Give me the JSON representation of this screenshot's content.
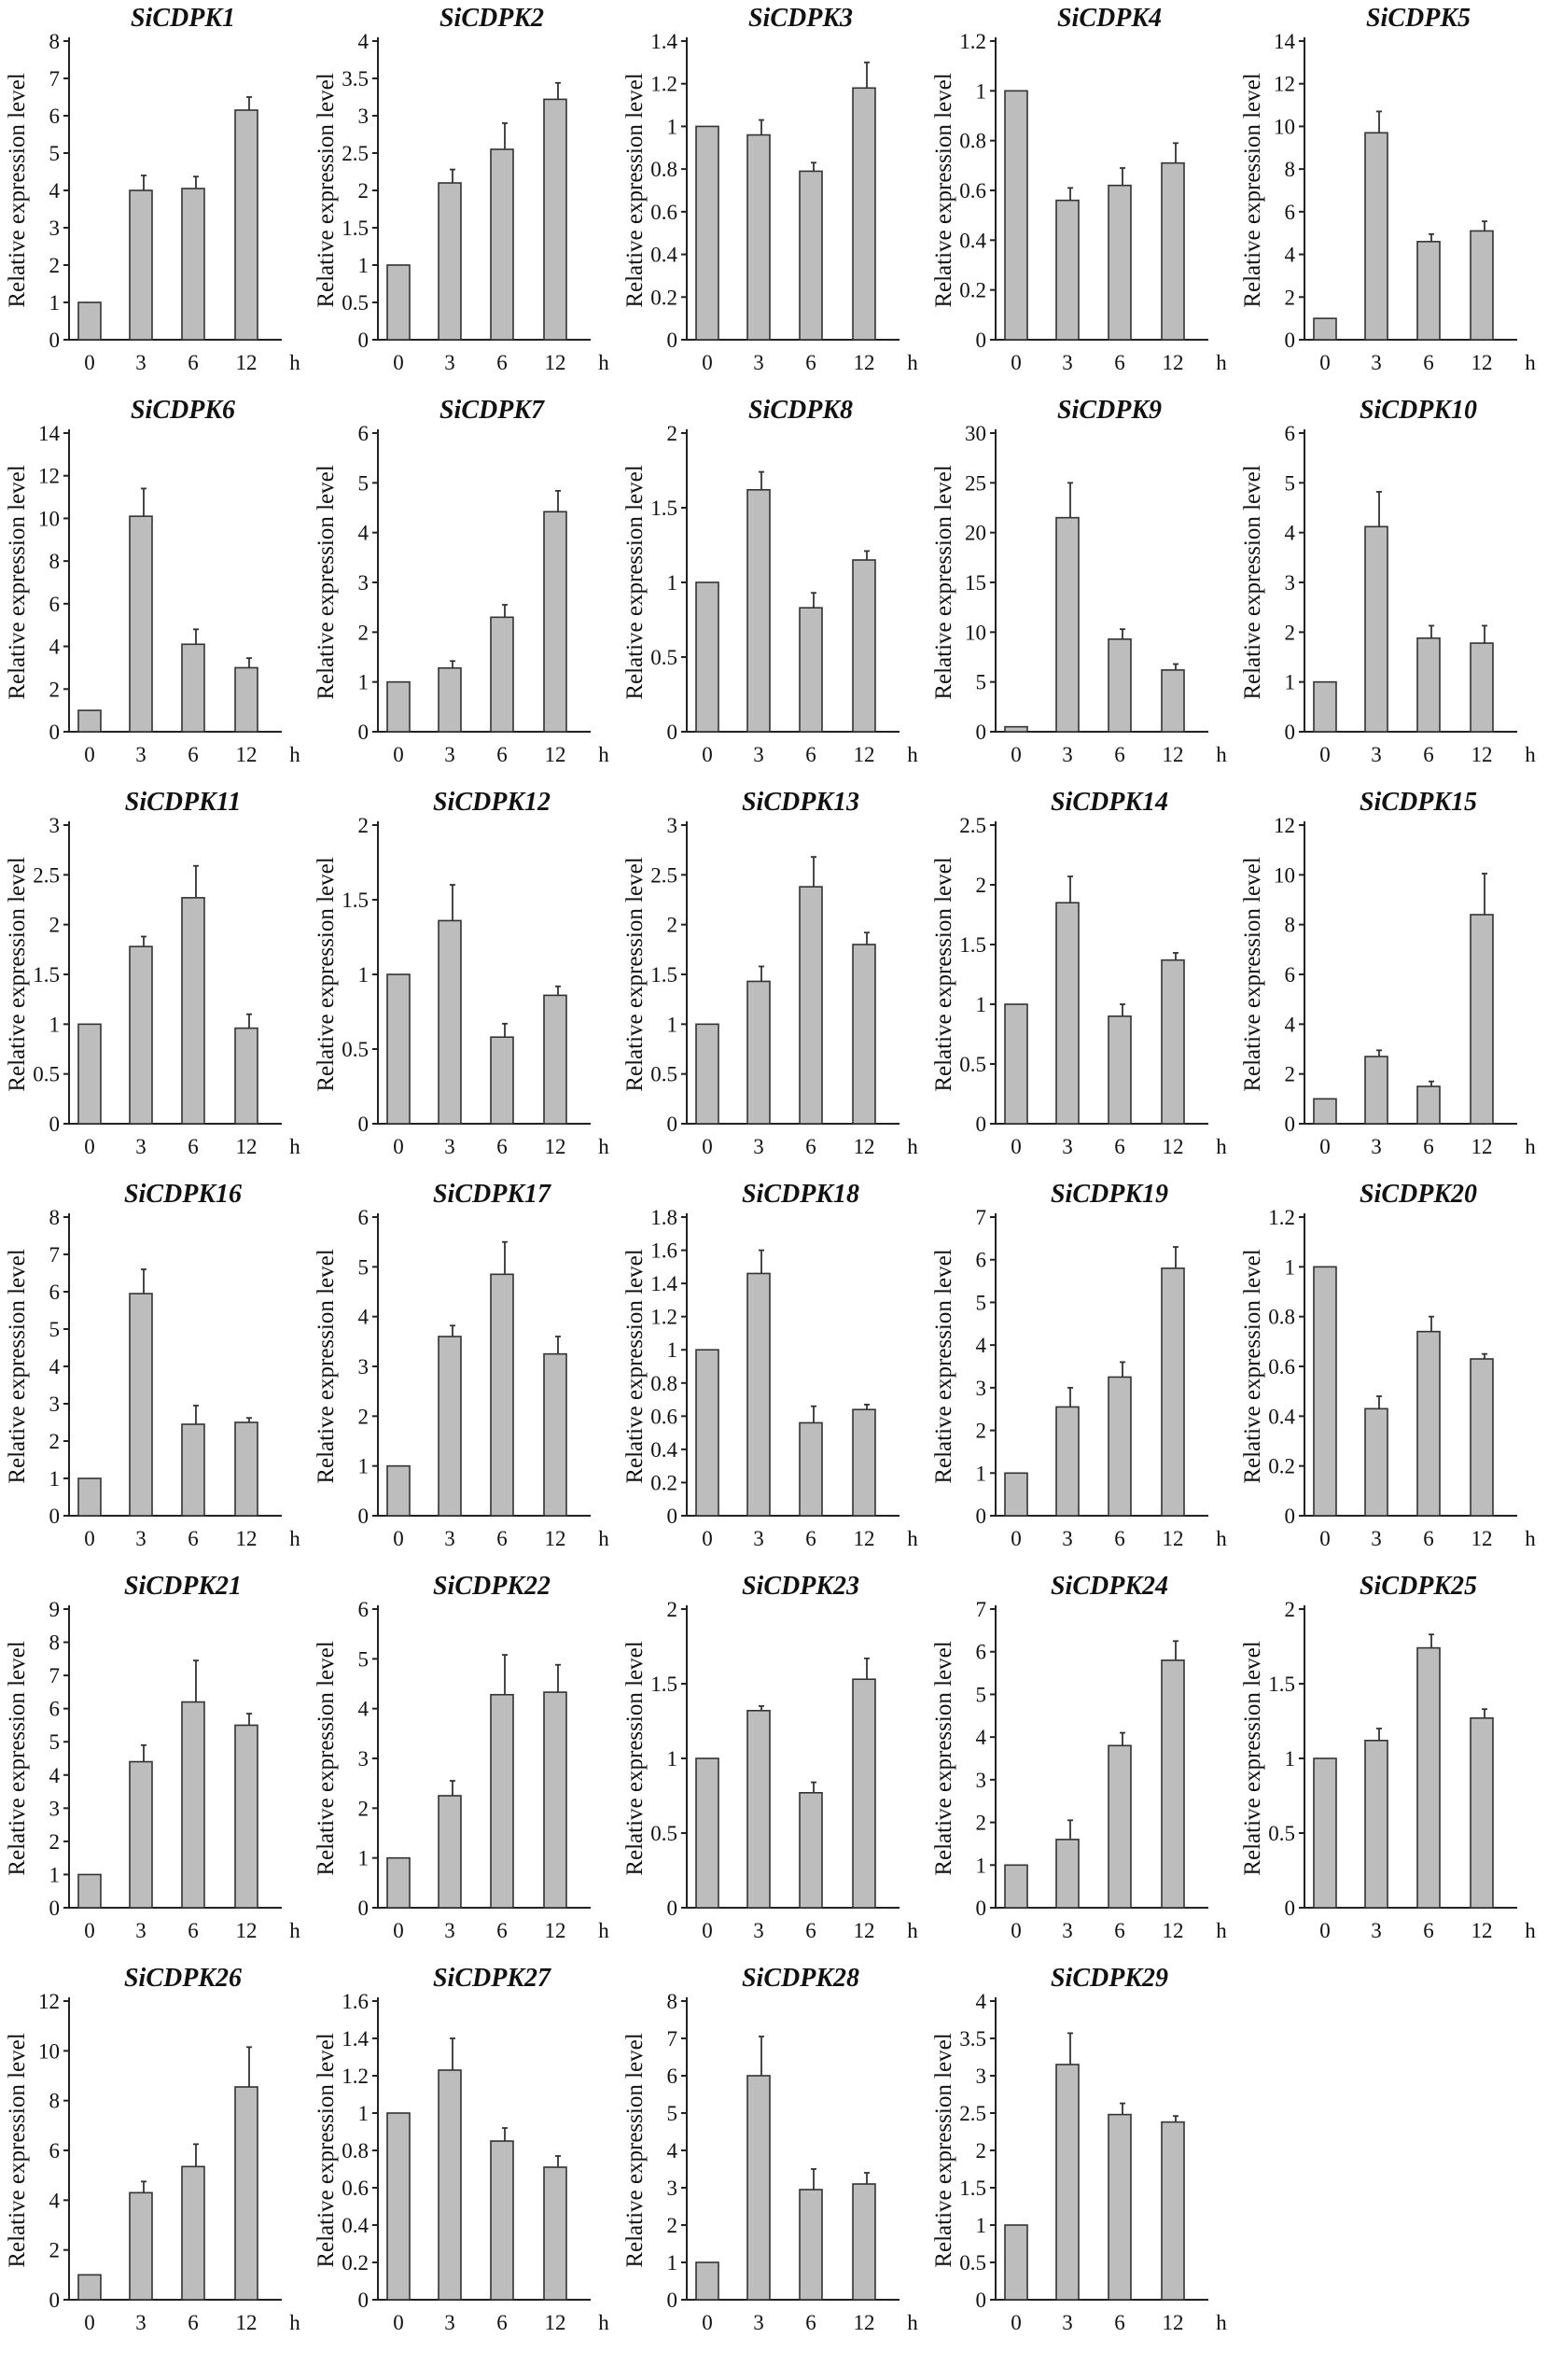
{
  "chart_data": [
    {
      "type": "bar",
      "title": "SiCDPK1",
      "ylabel": "Relative expression level",
      "xlabel": "h",
      "categories": [
        "0",
        "3",
        "6",
        "12"
      ],
      "values": [
        1,
        4.0,
        4.05,
        6.15
      ],
      "errors": [
        0,
        0.4,
        0.32,
        0.35
      ],
      "ylim": [
        0,
        8
      ],
      "yticks": [
        "0",
        "1",
        "2",
        "3",
        "4",
        "5",
        "6",
        "7",
        "8"
      ]
    },
    {
      "type": "bar",
      "title": "SiCDPK2",
      "ylabel": "Relative expression level",
      "xlabel": "h",
      "categories": [
        "0",
        "3",
        "6",
        "12"
      ],
      "values": [
        1,
        2.1,
        2.55,
        3.22
      ],
      "errors": [
        0,
        0.18,
        0.35,
        0.22
      ],
      "ylim": [
        0,
        4
      ],
      "yticks": [
        "0",
        "0.5",
        "1",
        "1.5",
        "2",
        "2.5",
        "3",
        "3.5",
        "4"
      ]
    },
    {
      "type": "bar",
      "title": "SiCDPK3",
      "ylabel": "Relative expression level",
      "xlabel": "h",
      "categories": [
        "0",
        "3",
        "6",
        "12"
      ],
      "values": [
        1,
        0.96,
        0.79,
        1.18
      ],
      "errors": [
        0,
        0.07,
        0.04,
        0.12
      ],
      "ylim": [
        0,
        1.4
      ],
      "yticks": [
        "0",
        "0.2",
        "0.4",
        "0.6",
        "0.8",
        "1",
        "1.2",
        "1.4"
      ]
    },
    {
      "type": "bar",
      "title": "SiCDPK4",
      "ylabel": "Relative expression level",
      "xlabel": "h",
      "categories": [
        "0",
        "3",
        "6",
        "12"
      ],
      "values": [
        1,
        0.56,
        0.62,
        0.71
      ],
      "errors": [
        0,
        0.05,
        0.07,
        0.08
      ],
      "ylim": [
        0,
        1.2
      ],
      "yticks": [
        "0",
        "0.2",
        "0.4",
        "0.6",
        "0.8",
        "1",
        "1.2"
      ]
    },
    {
      "type": "bar",
      "title": "SiCDPK5",
      "ylabel": "Relative expression level",
      "xlabel": "h",
      "categories": [
        "0",
        "3",
        "6",
        "12"
      ],
      "values": [
        1,
        9.7,
        4.6,
        5.1
      ],
      "errors": [
        0,
        1.0,
        0.35,
        0.45
      ],
      "ylim": [
        0,
        14
      ],
      "yticks": [
        "0",
        "2",
        "4",
        "6",
        "8",
        "10",
        "12",
        "14"
      ]
    },
    {
      "type": "bar",
      "title": "SiCDPK6",
      "ylabel": "Relative expression level",
      "xlabel": "h",
      "categories": [
        "0",
        "3",
        "6",
        "12"
      ],
      "values": [
        1,
        10.1,
        4.1,
        3.0
      ],
      "errors": [
        0,
        1.3,
        0.7,
        0.45
      ],
      "ylim": [
        0,
        14
      ],
      "yticks": [
        "0",
        "2",
        "4",
        "6",
        "8",
        "10",
        "12",
        "14"
      ]
    },
    {
      "type": "bar",
      "title": "SiCDPK7",
      "ylabel": "Relative expression level",
      "xlabel": "h",
      "categories": [
        "0",
        "3",
        "6",
        "12"
      ],
      "values": [
        1,
        1.28,
        2.3,
        4.42
      ],
      "errors": [
        0,
        0.14,
        0.25,
        0.42
      ],
      "ylim": [
        0,
        6
      ],
      "yticks": [
        "0",
        "1",
        "2",
        "3",
        "4",
        "5",
        "6"
      ]
    },
    {
      "type": "bar",
      "title": "SiCDPK8",
      "ylabel": "Relative expression level",
      "xlabel": "h",
      "categories": [
        "0",
        "3",
        "6",
        "12"
      ],
      "values": [
        1,
        1.62,
        0.83,
        1.15
      ],
      "errors": [
        0,
        0.12,
        0.1,
        0.06
      ],
      "ylim": [
        0,
        2
      ],
      "yticks": [
        "0",
        "0.5",
        "1",
        "1.5",
        "2"
      ]
    },
    {
      "type": "bar",
      "title": "SiCDPK9",
      "ylabel": "Relative expression level",
      "xlabel": "h",
      "categories": [
        "0",
        "3",
        "6",
        "12"
      ],
      "values": [
        0.5,
        21.5,
        9.3,
        6.2
      ],
      "errors": [
        0,
        3.5,
        1.0,
        0.6
      ],
      "ylim": [
        0,
        30
      ],
      "yticks": [
        "0",
        "5",
        "10",
        "15",
        "20",
        "25",
        "30"
      ]
    },
    {
      "type": "bar",
      "title": "SiCDPK10",
      "ylabel": "Relative expression level",
      "xlabel": "h",
      "categories": [
        "0",
        "3",
        "6",
        "12"
      ],
      "values": [
        1,
        4.12,
        1.88,
        1.78
      ],
      "errors": [
        0,
        0.7,
        0.25,
        0.35
      ],
      "ylim": [
        0,
        6
      ],
      "yticks": [
        "0",
        "1",
        "2",
        "3",
        "4",
        "5",
        "6"
      ]
    },
    {
      "type": "bar",
      "title": "SiCDPK11",
      "ylabel": "Relative expression level",
      "xlabel": "h",
      "categories": [
        "0",
        "3",
        "6",
        "12"
      ],
      "values": [
        1,
        1.78,
        2.27,
        0.96
      ],
      "errors": [
        0,
        0.1,
        0.32,
        0.14
      ],
      "ylim": [
        0,
        3
      ],
      "yticks": [
        "0",
        "0.5",
        "1",
        "1.5",
        "2",
        "2.5",
        "3"
      ]
    },
    {
      "type": "bar",
      "title": "SiCDPK12",
      "ylabel": "Relative expression level",
      "xlabel": "h",
      "categories": [
        "0",
        "3",
        "6",
        "12"
      ],
      "values": [
        1,
        1.36,
        0.58,
        0.86
      ],
      "errors": [
        0,
        0.24,
        0.09,
        0.06
      ],
      "ylim": [
        0,
        2
      ],
      "yticks": [
        "0",
        "0.5",
        "1",
        "1.5",
        "2"
      ]
    },
    {
      "type": "bar",
      "title": "SiCDPK13",
      "ylabel": "Relative expression level",
      "xlabel": "h",
      "categories": [
        "0",
        "3",
        "6",
        "12"
      ],
      "values": [
        1,
        1.43,
        2.38,
        1.8
      ],
      "errors": [
        0,
        0.15,
        0.3,
        0.12
      ],
      "ylim": [
        0,
        3
      ],
      "yticks": [
        "0",
        "0.5",
        "1",
        "1.5",
        "2",
        "2.5",
        "3"
      ]
    },
    {
      "type": "bar",
      "title": "SiCDPK14",
      "ylabel": "Relative expression level",
      "xlabel": "h",
      "categories": [
        "0",
        "3",
        "6",
        "12"
      ],
      "values": [
        1,
        1.85,
        0.9,
        1.37
      ],
      "errors": [
        0,
        0.22,
        0.1,
        0.06
      ],
      "ylim": [
        0,
        2.5
      ],
      "yticks": [
        "0",
        "0.5",
        "1",
        "1.5",
        "2",
        "2.5"
      ]
    },
    {
      "type": "bar",
      "title": "SiCDPK15",
      "ylabel": "Relative expression level",
      "xlabel": "h",
      "categories": [
        "0",
        "3",
        "6",
        "12"
      ],
      "values": [
        1,
        2.7,
        1.5,
        8.4
      ],
      "errors": [
        0,
        0.25,
        0.2,
        1.65
      ],
      "ylim": [
        0,
        12
      ],
      "yticks": [
        "0",
        "2",
        "4",
        "6",
        "8",
        "10",
        "12"
      ]
    },
    {
      "type": "bar",
      "title": "SiCDPK16",
      "ylabel": "Relative expression level",
      "xlabel": "h",
      "categories": [
        "0",
        "3",
        "6",
        "12"
      ],
      "values": [
        1,
        5.95,
        2.45,
        2.5
      ],
      "errors": [
        0,
        0.65,
        0.5,
        0.12
      ],
      "ylim": [
        0,
        8
      ],
      "yticks": [
        "0",
        "1",
        "2",
        "3",
        "4",
        "5",
        "6",
        "7",
        "8"
      ]
    },
    {
      "type": "bar",
      "title": "SiCDPK17",
      "ylabel": "Relative expression level",
      "xlabel": "h",
      "categories": [
        "0",
        "3",
        "6",
        "12"
      ],
      "values": [
        1,
        3.6,
        4.85,
        3.25
      ],
      "errors": [
        0,
        0.22,
        0.65,
        0.35
      ],
      "ylim": [
        0,
        6
      ],
      "yticks": [
        "0",
        "1",
        "2",
        "3",
        "4",
        "5",
        "6"
      ]
    },
    {
      "type": "bar",
      "title": "SiCDPK18",
      "ylabel": "Relative expression level",
      "xlabel": "h",
      "categories": [
        "0",
        "3",
        "6",
        "12"
      ],
      "values": [
        1,
        1.46,
        0.56,
        0.64
      ],
      "errors": [
        0,
        0.14,
        0.1,
        0.03
      ],
      "ylim": [
        0,
        1.8
      ],
      "yticks": [
        "0",
        "0.2",
        "0.4",
        "0.6",
        "0.8",
        "1",
        "1.2",
        "1.4",
        "1.6",
        "1.8"
      ]
    },
    {
      "type": "bar",
      "title": "SiCDPK19",
      "ylabel": "Relative expression level",
      "xlabel": "h",
      "categories": [
        "0",
        "3",
        "6",
        "12"
      ],
      "values": [
        1,
        2.55,
        3.25,
        5.8
      ],
      "errors": [
        0,
        0.45,
        0.35,
        0.5
      ],
      "ylim": [
        0,
        7
      ],
      "yticks": [
        "0",
        "1",
        "2",
        "3",
        "4",
        "5",
        "6",
        "7"
      ]
    },
    {
      "type": "bar",
      "title": "SiCDPK20",
      "ylabel": "Relative expression level",
      "xlabel": "h",
      "categories": [
        "0",
        "3",
        "6",
        "12"
      ],
      "values": [
        1,
        0.43,
        0.74,
        0.63
      ],
      "errors": [
        0,
        0.05,
        0.06,
        0.02
      ],
      "ylim": [
        0,
        1.2
      ],
      "yticks": [
        "0",
        "0.2",
        "0.4",
        "0.6",
        "0.8",
        "1",
        "1.2"
      ]
    },
    {
      "type": "bar",
      "title": "SiCDPK21",
      "ylabel": "Relative expression level",
      "xlabel": "h",
      "categories": [
        "0",
        "3",
        "6",
        "12"
      ],
      "values": [
        1,
        4.4,
        6.2,
        5.5
      ],
      "errors": [
        0,
        0.5,
        1.25,
        0.35
      ],
      "ylim": [
        0,
        9
      ],
      "yticks": [
        "0",
        "1",
        "2",
        "3",
        "4",
        "5",
        "6",
        "7",
        "8",
        "9"
      ]
    },
    {
      "type": "bar",
      "title": "SiCDPK22",
      "ylabel": "Relative expression level",
      "xlabel": "h",
      "categories": [
        "0",
        "3",
        "6",
        "12"
      ],
      "values": [
        1,
        2.25,
        4.28,
        4.33
      ],
      "errors": [
        0,
        0.3,
        0.8,
        0.55
      ],
      "ylim": [
        0,
        6
      ],
      "yticks": [
        "0",
        "1",
        "2",
        "3",
        "4",
        "5",
        "6"
      ]
    },
    {
      "type": "bar",
      "title": "SiCDPK23",
      "ylabel": "Relative expression level",
      "xlabel": "h",
      "categories": [
        "0",
        "3",
        "6",
        "12"
      ],
      "values": [
        1,
        1.32,
        0.77,
        1.53
      ],
      "errors": [
        0,
        0.03,
        0.07,
        0.14
      ],
      "ylim": [
        0,
        2
      ],
      "yticks": [
        "0",
        "0.5",
        "1",
        "1.5",
        "2"
      ]
    },
    {
      "type": "bar",
      "title": "SiCDPK24",
      "ylabel": "Relative expression level",
      "xlabel": "h",
      "categories": [
        "0",
        "3",
        "6",
        "12"
      ],
      "values": [
        1,
        1.6,
        3.8,
        5.8
      ],
      "errors": [
        0,
        0.45,
        0.3,
        0.45
      ],
      "ylim": [
        0,
        7
      ],
      "yticks": [
        "0",
        "1",
        "2",
        "3",
        "4",
        "5",
        "6",
        "7"
      ]
    },
    {
      "type": "bar",
      "title": "SiCDPK25",
      "ylabel": "Relative expression level",
      "xlabel": "h",
      "categories": [
        "0",
        "3",
        "6",
        "12"
      ],
      "values": [
        1,
        1.12,
        1.74,
        1.27
      ],
      "errors": [
        0,
        0.08,
        0.09,
        0.06
      ],
      "ylim": [
        0,
        2
      ],
      "yticks": [
        "0",
        "0.5",
        "1",
        "1.5",
        "2"
      ]
    },
    {
      "type": "bar",
      "title": "SiCDPK26",
      "ylabel": "Relative expression level",
      "xlabel": "h",
      "categories": [
        "0",
        "3",
        "6",
        "12"
      ],
      "values": [
        1,
        4.3,
        5.35,
        8.55
      ],
      "errors": [
        0,
        0.45,
        0.9,
        1.6
      ],
      "ylim": [
        0,
        12
      ],
      "yticks": [
        "0",
        "2",
        "4",
        "6",
        "8",
        "10",
        "12"
      ]
    },
    {
      "type": "bar",
      "title": "SiCDPK27",
      "ylabel": "Relative expression level",
      "xlabel": "h",
      "categories": [
        "0",
        "3",
        "6",
        "12"
      ],
      "values": [
        1,
        1.23,
        0.85,
        0.71
      ],
      "errors": [
        0,
        0.17,
        0.07,
        0.06
      ],
      "ylim": [
        0,
        1.6
      ],
      "yticks": [
        "0",
        "0.2",
        "0.4",
        "0.6",
        "0.8",
        "1",
        "1.2",
        "1.4",
        "1.6"
      ]
    },
    {
      "type": "bar",
      "title": "SiCDPK28",
      "ylabel": "Relative expression level",
      "xlabel": "h",
      "categories": [
        "0",
        "3",
        "6",
        "12"
      ],
      "values": [
        1,
        6.0,
        2.95,
        3.1
      ],
      "errors": [
        0,
        1.05,
        0.55,
        0.3
      ],
      "ylim": [
        0,
        8
      ],
      "yticks": [
        "0",
        "1",
        "2",
        "3",
        "4",
        "5",
        "6",
        "7",
        "8"
      ]
    },
    {
      "type": "bar",
      "title": "SiCDPK29",
      "ylabel": "Relative expression level",
      "xlabel": "h",
      "categories": [
        "0",
        "3",
        "6",
        "12"
      ],
      "values": [
        1,
        3.15,
        2.48,
        2.38
      ],
      "errors": [
        0,
        0.42,
        0.15,
        0.08
      ],
      "ylim": [
        0,
        4
      ],
      "yticks": [
        "0",
        "0.5",
        "1",
        "1.5",
        "2",
        "2.5",
        "3",
        "3.5",
        "4"
      ]
    }
  ]
}
